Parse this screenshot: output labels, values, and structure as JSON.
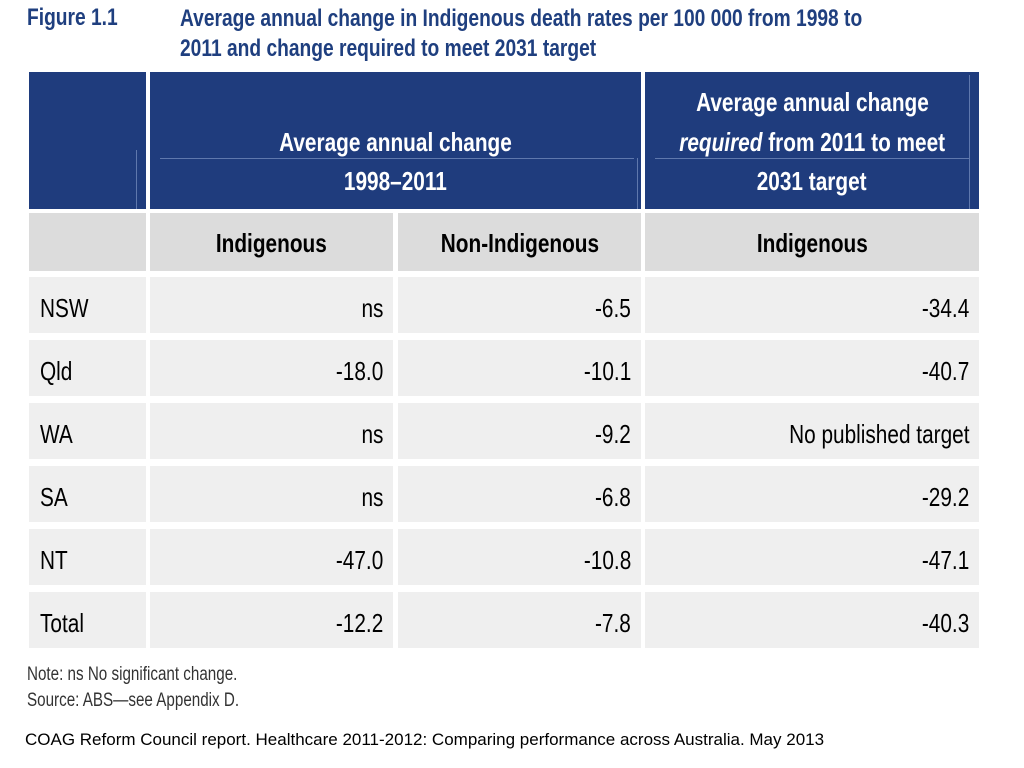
{
  "figure_label": "Figure 1.1",
  "title_lines": [
    "Average annual change in Indigenous death rates per 100 000 from 1998 to",
    "2011 and change required to meet 2031 target"
  ],
  "header": {
    "group1_line1": "Average annual change",
    "group1_line2": "1998–2011",
    "group2_line1": "Average annual change",
    "group2_line2_em": "required",
    "group2_line2_rest": " from 2011 to meet",
    "group2_line3": "2031 target"
  },
  "subheaders": [
    "Indigenous",
    "Non-Indigenous",
    "Indigenous"
  ],
  "rows": [
    {
      "state": "NSW",
      "indigenous": "ns",
      "non_indigenous": "-6.5",
      "required": "-34.4"
    },
    {
      "state": "Qld",
      "indigenous": "-18.0",
      "non_indigenous": "-10.1",
      "required": "-40.7"
    },
    {
      "state": "WA",
      "indigenous": "ns",
      "non_indigenous": "-9.2",
      "required": "No published target"
    },
    {
      "state": "SA",
      "indigenous": "ns",
      "non_indigenous": "-6.8",
      "required": "-29.2"
    },
    {
      "state": "NT",
      "indigenous": "-47.0",
      "non_indigenous": "-10.8",
      "required": "-47.1"
    },
    {
      "state": "Total",
      "indigenous": "-12.2",
      "non_indigenous": "-7.8",
      "required": "-40.3"
    }
  ],
  "note": "Note: ns No significant change.",
  "source": "Source: ABS—see Appendix D.",
  "footer": "COAG Reform Council report. Healthcare 2011-2012: Comparing performance across Australia.  May 2013",
  "colors": {
    "header_blue": "#1f3c7d",
    "title_blue": "#1f3f7f",
    "subheader_grey": "#dcdcdc",
    "row_grey": "#efefef"
  }
}
